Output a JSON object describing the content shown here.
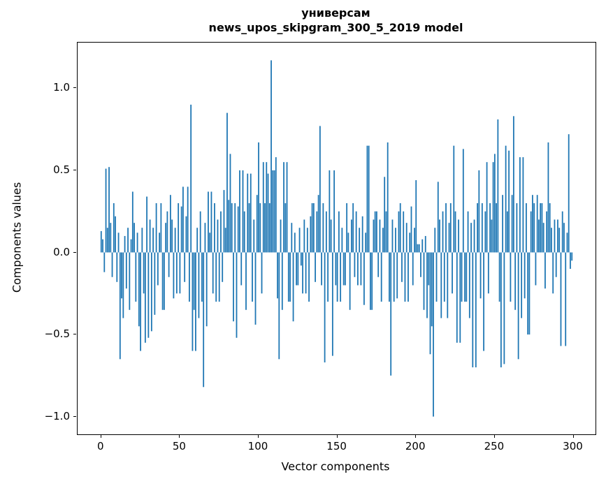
{
  "title": "универсам",
  "subtitle": "news_upos_skipgram_300_5_2019 model",
  "chart_data": {
    "type": "bar",
    "title": "универсам",
    "subtitle": "news_upos_skipgram_300_5_2019 model",
    "xlabel": "Vector components",
    "ylabel": "Components values",
    "bar_color": "#1f77b4",
    "xlim": [
      -15,
      314
    ],
    "ylim": [
      -1.108,
      1.278
    ],
    "xticks": [
      {
        "value": 0,
        "label": "0"
      },
      {
        "value": 50,
        "label": "50"
      },
      {
        "value": 100,
        "label": "100"
      },
      {
        "value": 150,
        "label": "150"
      },
      {
        "value": 200,
        "label": "200"
      },
      {
        "value": 250,
        "label": "250"
      },
      {
        "value": 300,
        "label": "300"
      }
    ],
    "yticks": [
      {
        "value": 1.0,
        "label": "1.0"
      },
      {
        "value": 0.5,
        "label": "0.5"
      },
      {
        "value": 0.0,
        "label": "0.0"
      },
      {
        "value": -0.5,
        "label": "−0.5"
      },
      {
        "value": -1.0,
        "label": "−1.0"
      }
    ],
    "x_start": 0,
    "values": [
      0.13,
      0.08,
      -0.12,
      0.51,
      0.15,
      0.52,
      0.18,
      -0.15,
      0.3,
      0.22,
      -0.18,
      0.12,
      -0.65,
      -0.28,
      -0.4,
      0.1,
      -0.22,
      0.15,
      -0.35,
      0.08,
      0.37,
      0.18,
      -0.3,
      0.12,
      -0.45,
      -0.6,
      0.15,
      -0.25,
      -0.55,
      0.34,
      -0.52,
      0.2,
      -0.48,
      0.15,
      -0.38,
      0.3,
      -0.2,
      0.12,
      0.3,
      -0.35,
      -0.35,
      0.18,
      0.25,
      -0.15,
      0.35,
      0.2,
      -0.28,
      0.15,
      -0.25,
      0.3,
      -0.25,
      0.28,
      0.4,
      -0.18,
      0.22,
      0.4,
      -0.3,
      0.9,
      -0.6,
      -0.35,
      -0.6,
      0.15,
      -0.4,
      0.25,
      -0.3,
      -0.82,
      0.18,
      -0.45,
      0.37,
      0.12,
      0.37,
      -0.25,
      0.3,
      -0.3,
      0.2,
      -0.3,
      0.25,
      -0.18,
      0.38,
      0.15,
      0.85,
      0.32,
      0.6,
      0.3,
      -0.42,
      0.3,
      -0.52,
      0.28,
      0.5,
      -0.2,
      0.5,
      0.25,
      -0.35,
      0.48,
      0.3,
      0.48,
      -0.3,
      0.2,
      -0.44,
      0.35,
      0.67,
      0.3,
      -0.25,
      0.55,
      0.3,
      0.55,
      0.48,
      0.3,
      1.17,
      0.5,
      0.5,
      0.58,
      -0.28,
      -0.65,
      0.2,
      -0.35,
      0.55,
      0.3,
      0.55,
      -0.3,
      -0.3,
      0.18,
      -0.42,
      0.12,
      -0.2,
      -0.2,
      0.15,
      -0.08,
      -0.25,
      0.2,
      -0.25,
      0.15,
      -0.3,
      0.22,
      0.3,
      0.3,
      -0.18,
      0.25,
      0.35,
      0.77,
      -0.2,
      0.3,
      -0.67,
      0.25,
      -0.3,
      0.5,
      0.2,
      -0.63,
      0.5,
      -0.2,
      -0.3,
      0.25,
      -0.3,
      0.15,
      -0.2,
      -0.2,
      0.3,
      0.12,
      -0.35,
      0.2,
      0.3,
      -0.15,
      0.25,
      -0.2,
      0.15,
      -0.2,
      0.22,
      -0.32,
      0.12,
      0.65,
      0.65,
      -0.35,
      -0.35,
      0.2,
      0.25,
      0.25,
      -0.15,
      0.2,
      -0.3,
      0.15,
      0.46,
      0.25,
      0.67,
      -0.3,
      -0.75,
      0.2,
      -0.3,
      0.15,
      -0.28,
      0.25,
      0.3,
      -0.18,
      0.25,
      -0.3,
      0.18,
      -0.3,
      0.12,
      0.28,
      -0.2,
      0.15,
      0.44,
      0.05,
      0.05,
      -0.15,
      0.08,
      -0.35,
      0.1,
      -0.4,
      -0.2,
      -0.62,
      -0.45,
      -1.0,
      0.15,
      -0.3,
      0.43,
      0.2,
      -0.4,
      0.25,
      -0.3,
      0.3,
      -0.4,
      0.18,
      0.3,
      -0.25,
      0.65,
      0.25,
      -0.55,
      0.2,
      -0.55,
      -0.3,
      0.63,
      -0.3,
      -0.3,
      0.25,
      -0.4,
      0.18,
      -0.7,
      0.2,
      -0.7,
      0.3,
      0.5,
      -0.28,
      0.3,
      -0.6,
      0.25,
      0.55,
      -0.25,
      0.3,
      0.2,
      0.55,
      0.6,
      0.3,
      0.81,
      -0.3,
      -0.7,
      0.35,
      -0.68,
      0.65,
      0.25,
      0.62,
      -0.3,
      0.35,
      0.83,
      -0.35,
      0.3,
      -0.65,
      0.58,
      -0.4,
      0.58,
      -0.28,
      0.3,
      -0.5,
      -0.5,
      0.25,
      0.35,
      0.3,
      -0.2,
      0.35,
      0.2,
      0.3,
      0.3,
      0.18,
      -0.22,
      0.25,
      0.67,
      0.3,
      0.15,
      -0.25,
      0.2,
      -0.15,
      0.2,
      0.15,
      -0.57,
      0.25,
      0.18,
      -0.57,
      0.12,
      0.72,
      -0.1,
      -0.05
    ]
  }
}
